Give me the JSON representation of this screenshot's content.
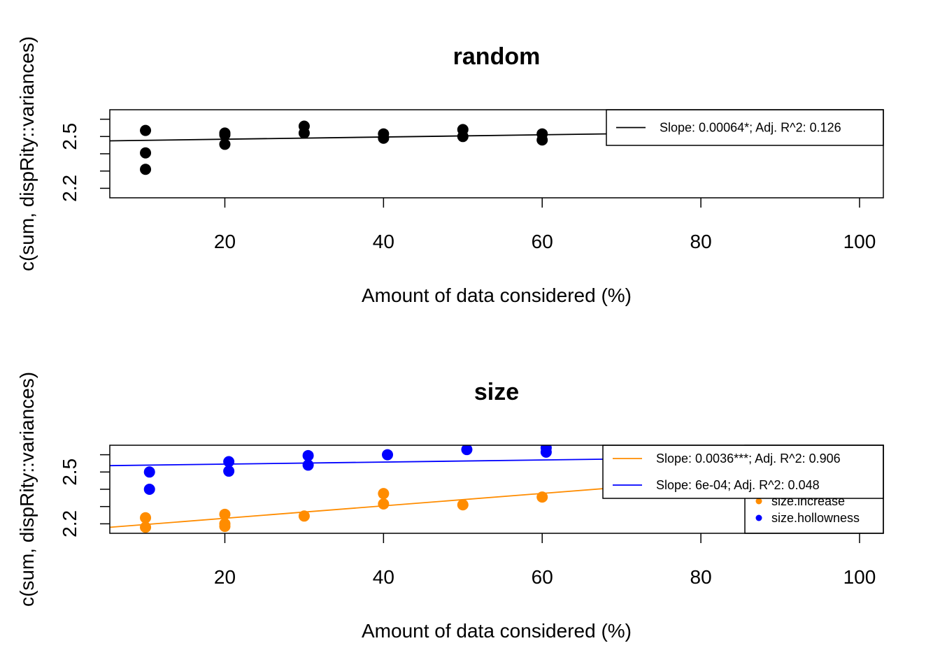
{
  "chart_data": [
    {
      "type": "scatter",
      "title": "random",
      "xlabel": "Amount of data considered (%)",
      "ylabel": "c(sum, dispRity::variances)",
      "xlim": [
        5.5,
        103
      ],
      "ylim": [
        2.145,
        2.655
      ],
      "xticks": [
        20,
        40,
        60,
        80,
        100
      ],
      "yticks": [
        2.2,
        2.3,
        2.4,
        2.5,
        2.6
      ],
      "ytick_labels": [
        "2.2",
        "",
        "",
        "2.5",
        ""
      ],
      "series": [
        {
          "color": "#000000",
          "points": [
            {
              "x": 10,
              "y": 2.535
            },
            {
              "x": 10,
              "y": 2.405
            },
            {
              "x": 10,
              "y": 2.31
            },
            {
              "x": 20,
              "y": 2.52
            },
            {
              "x": 20,
              "y": 2.51
            },
            {
              "x": 20,
              "y": 2.455
            },
            {
              "x": 30,
              "y": 2.56
            },
            {
              "x": 30,
              "y": 2.52
            },
            {
              "x": 40,
              "y": 2.515
            },
            {
              "x": 40,
              "y": 2.49
            },
            {
              "x": 50,
              "y": 2.54
            },
            {
              "x": 50,
              "y": 2.5
            },
            {
              "x": 60,
              "y": 2.515
            },
            {
              "x": 60,
              "y": 2.48
            }
          ],
          "fit": {
            "intercept": 2.4715,
            "slope": 0.00064
          }
        }
      ],
      "legend": {
        "position": "top-right",
        "entries": [
          {
            "label": "Slope: 0.00064*; Adj. R^2: 0.126",
            "color": "#000000"
          }
        ]
      }
    },
    {
      "type": "scatter",
      "title": "size",
      "xlabel": "Amount of data considered (%)",
      "ylabel": "c(sum, dispRity::variances)",
      "xlim": [
        5.5,
        103
      ],
      "ylim": [
        2.145,
        2.655
      ],
      "xticks": [
        20,
        40,
        60,
        80,
        100
      ],
      "yticks": [
        2.2,
        2.3,
        2.4,
        2.5,
        2.6
      ],
      "ytick_labels": [
        "2.2",
        "",
        "",
        "2.5",
        ""
      ],
      "series": [
        {
          "name": "size.increase",
          "color": "#FF8C00",
          "points": [
            {
              "x": 10,
              "y": 2.235
            },
            {
              "x": 10,
              "y": 2.18
            },
            {
              "x": 20,
              "y": 2.255
            },
            {
              "x": 20,
              "y": 2.2
            },
            {
              "x": 20,
              "y": 2.185
            },
            {
              "x": 30,
              "y": 2.245
            },
            {
              "x": 40,
              "y": 2.375
            },
            {
              "x": 40,
              "y": 2.315
            },
            {
              "x": 50,
              "y": 2.31
            },
            {
              "x": 60,
              "y": 2.355
            }
          ],
          "fit": {
            "intercept": 2.16,
            "slope": 0.0036
          }
        },
        {
          "name": "size.hollowness",
          "color": "#0000FF",
          "points": [
            {
              "x": 10.5,
              "y": 2.5
            },
            {
              "x": 10.5,
              "y": 2.4
            },
            {
              "x": 20.5,
              "y": 2.56
            },
            {
              "x": 20.5,
              "y": 2.505
            },
            {
              "x": 30.5,
              "y": 2.595
            },
            {
              "x": 30.5,
              "y": 2.54
            },
            {
              "x": 40.5,
              "y": 2.6
            },
            {
              "x": 50.5,
              "y": 2.63
            },
            {
              "x": 60.5,
              "y": 2.64
            },
            {
              "x": 60.5,
              "y": 2.615
            }
          ],
          "fit": {
            "intercept": 2.5336,
            "slope": 0.0006
          }
        }
      ],
      "legend": {
        "position": "top-right",
        "entries": [
          {
            "label": "Slope: 0.0036***; Adj. R^2: 0.906",
            "color": "#FF8C00"
          },
          {
            "label": "Slope: 6e-04; Adj. R^2: 0.048",
            "color": "#0000FF"
          }
        ]
      },
      "points_legend": {
        "position": "bottom-right",
        "entries": [
          {
            "label": "size.increase",
            "color": "#FF8C00"
          },
          {
            "label": "size.hollowness",
            "color": "#0000FF"
          }
        ]
      }
    }
  ]
}
